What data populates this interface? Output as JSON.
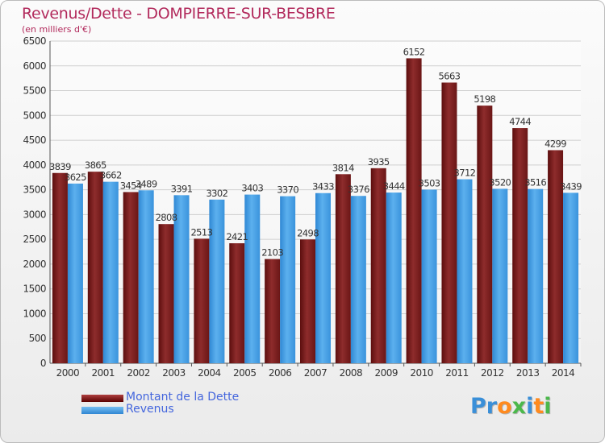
{
  "chart_data": {
    "type": "bar",
    "title": "Revenus/Dette - DOMPIERRE-SUR-BESBRE",
    "subtitle": "(en milliers d'€)",
    "categories": [
      "2000",
      "2001",
      "2002",
      "2003",
      "2004",
      "2005",
      "2006",
      "2007",
      "2008",
      "2009",
      "2010",
      "2011",
      "2012",
      "2013",
      "2014"
    ],
    "series": [
      {
        "name": "Montant de la Dette",
        "color": "#7a1818",
        "values": [
          3839,
          3865,
          3454,
          2808,
          2513,
          2421,
          2103,
          2498,
          3814,
          3935,
          6152,
          5663,
          5198,
          4744,
          4299
        ],
        "labels": [
          "3839",
          "3865",
          "3454",
          "2808",
          "2513",
          "2421",
          "2103",
          "2498",
          "3814",
          "3935",
          "6152",
          "5663",
          "5198",
          "4744",
          "4299"
        ]
      },
      {
        "name": "Revenus",
        "color": "#3d9ae4",
        "values": [
          3625,
          3662,
          3489,
          3391,
          3302,
          3403,
          3370,
          3433,
          3376,
          3444,
          3503,
          3712,
          3520,
          3516,
          3439
        ],
        "labels": [
          "3625",
          "3662",
          "3489",
          "3391",
          "3302",
          "3403",
          "3370",
          "3433",
          "3376",
          "3444",
          "3503",
          "3712",
          "3520",
          "3516",
          "3439"
        ]
      }
    ],
    "ylim": [
      0,
      6500
    ],
    "yticks": [
      "0",
      "500",
      "1000",
      "1500",
      "2000",
      "2500",
      "3000",
      "3500",
      "4000",
      "4500",
      "5000",
      "5500",
      "6000",
      "6500"
    ],
    "grid": true,
    "legend_position": "bottom-left"
  },
  "logo": {
    "parts": [
      {
        "text": "Pr",
        "color": "#3a8fd8"
      },
      {
        "text": "o",
        "color": "#ff8a1e"
      },
      {
        "text": "x",
        "color": "#4bb84b"
      },
      {
        "text": "i",
        "color": "#3a8fd8"
      },
      {
        "text": "t",
        "color": "#ff8a1e"
      },
      {
        "text": "i",
        "color": "#4bb84b"
      }
    ]
  }
}
